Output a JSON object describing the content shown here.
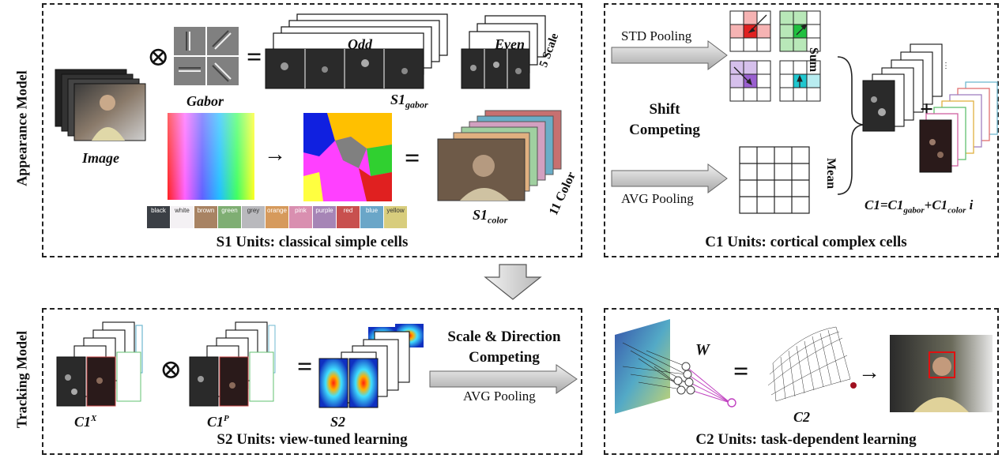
{
  "side_labels": {
    "appearance": "Appearance Model",
    "tracking": "Tracking Model"
  },
  "panel_captions": {
    "s1": "S1 Units: classical simple cells",
    "c1": "C1 Units: cortical complex cells",
    "s2": "S2 Units: view-tuned learning",
    "c2": "C2 Units: task-dependent learning"
  },
  "s1": {
    "image_label": "Image",
    "gabor_label": "Gabor",
    "odd_label": "Odd",
    "even_label": "Even",
    "scale_label": "5 Scale",
    "s1_gabor_main": "S1",
    "s1_gabor_sub": "gabor",
    "s1_color_main": "S1",
    "s1_color_sub": "color",
    "color_count_label": "11 Color",
    "convolve_symbol": "⊗",
    "equals_symbol": "=",
    "arrow_symbol": "→",
    "color_names": [
      {
        "name": "black",
        "color": "#3b3f45"
      },
      {
        "name": "white",
        "color": "#f4f1f4"
      },
      {
        "name": "brown",
        "color": "#a88363"
      },
      {
        "name": "green",
        "color": "#7fae73"
      },
      {
        "name": "grey",
        "color": "#b9b9bd"
      },
      {
        "name": "orange",
        "color": "#d69a5c"
      },
      {
        "name": "pink",
        "color": "#d98fb0"
      },
      {
        "name": "purple",
        "color": "#a685b6"
      },
      {
        "name": "red",
        "color": "#c8504e"
      },
      {
        "name": "blue",
        "color": "#6aa6c8"
      },
      {
        "name": "yellow",
        "color": "#d8cd7d"
      }
    ]
  },
  "c1": {
    "std_pooling": "STD Pooling",
    "avg_pooling": "AVG Pooling",
    "shift_competing_1": "Shift",
    "shift_competing_2": "Competing",
    "sum_label": "Sum",
    "mean_label": "Mean",
    "plus_symbol": "+",
    "formula_main": "C1=C1",
    "formula_sub1": "gabor",
    "formula_mid": "+C1",
    "formula_sub2": "color",
    "formula_end": " i"
  },
  "s2": {
    "c1x_main": "C1",
    "c1x_sup": "X",
    "c1p_main": "C1",
    "c1p_sup": "P",
    "s2_label": "S2",
    "convolve_symbol": "⊗",
    "equals_symbol": "=",
    "competing_1": "Scale & Direction",
    "competing_2": "Competing",
    "avg_pooling": "AVG Pooling"
  },
  "c2": {
    "w_label": "W",
    "c2_label": "C2",
    "equals_symbol": "=",
    "arrow_symbol": "→"
  }
}
